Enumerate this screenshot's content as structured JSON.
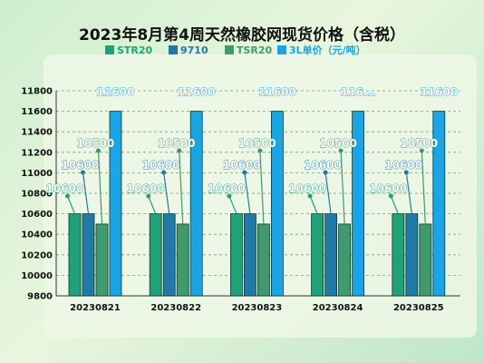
{
  "chart_data": {
    "type": "bar",
    "title": "2023年8月第4周天然橡胶网现货价格（含税）",
    "categories": [
      "20230821",
      "20230822",
      "20230823",
      "20230824",
      "20230825"
    ],
    "series": [
      {
        "name": "STR20",
        "color": "#1fa278",
        "values": [
          10600,
          10600,
          10600,
          10600,
          10600
        ]
      },
      {
        "name": "9710",
        "color": "#1f7aa8",
        "values": [
          10600,
          10600,
          10600,
          10600,
          10600
        ]
      },
      {
        "name": "TSR20",
        "color": "#3f9a6d",
        "values": [
          10500,
          10500,
          10500,
          10500,
          10500
        ]
      },
      {
        "name": "3L单价（元/吨）",
        "color": "#1aa5e6",
        "values": [
          11600,
          11600,
          11600,
          11600,
          11600
        ]
      }
    ],
    "data_labels": {
      "STR20": [
        "10600",
        "10600",
        "10600",
        "10600",
        "10600"
      ],
      "9710": [
        "10600",
        "10600",
        "10600",
        "10600",
        "10600"
      ],
      "TSR20": [
        "10500",
        "10500",
        "10500",
        "10500",
        "10500"
      ],
      "3L单价（元/吨）": [
        "11600",
        "11600",
        "11600",
        "116...",
        "11600"
      ]
    },
    "ylim": [
      9800,
      11800
    ],
    "yticks": [
      9800,
      10000,
      10200,
      10400,
      10600,
      10800,
      11000,
      11200,
      11400,
      11600,
      11800
    ],
    "grid": true,
    "legend_position": "top"
  }
}
